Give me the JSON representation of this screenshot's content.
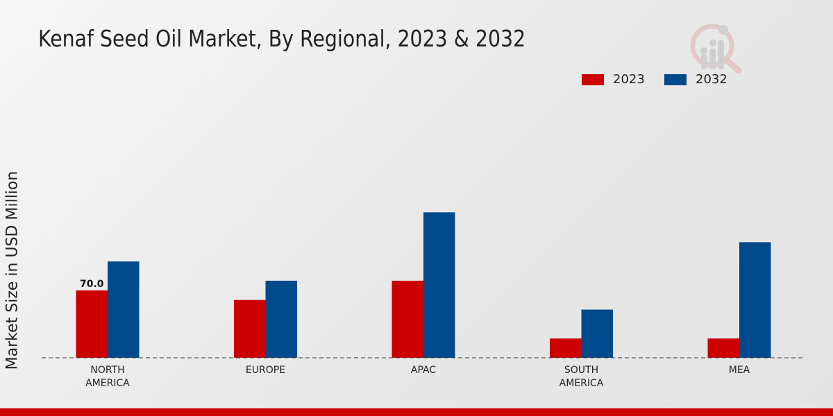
{
  "chart_data": {
    "type": "bar",
    "title": "Kenaf Seed Oil Market, By Regional, 2023 & 2032",
    "xlabel": "",
    "ylabel": "Market Size in USD Million",
    "categories": [
      [
        "NORTH",
        "AMERICA"
      ],
      [
        "EUROPE"
      ],
      [
        "APAC"
      ],
      [
        "SOUTH",
        "AMERICA"
      ],
      [
        "MEA"
      ]
    ],
    "series": [
      {
        "name": "2023",
        "color": "#cc0000",
        "values": [
          70.0,
          60,
          80,
          20,
          20
        ]
      },
      {
        "name": "2032",
        "color": "#004a8c",
        "values": [
          100,
          80,
          151,
          50,
          120
        ]
      }
    ],
    "data_labels": [
      {
        "series": 0,
        "index": 0,
        "text": "70.0"
      }
    ],
    "ylim": [
      0,
      216
    ],
    "grid": false,
    "legend_position": "top-right"
  },
  "colors": {
    "accent_bar": "#cc0000"
  }
}
